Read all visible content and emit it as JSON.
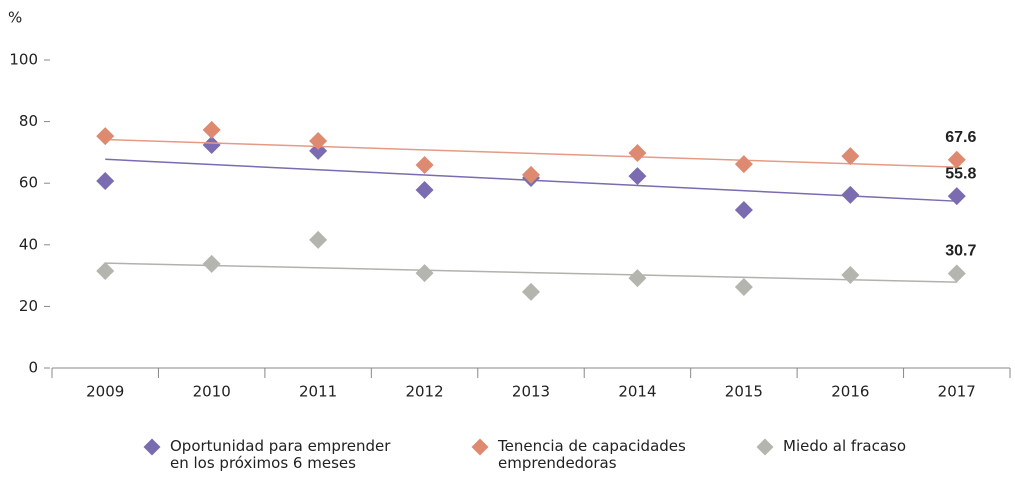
{
  "chart_data": {
    "type": "scatter",
    "y_unit": "%",
    "categories": [
      "2009",
      "2010",
      "2011",
      "2012",
      "2013",
      "2014",
      "2015",
      "2016",
      "2017"
    ],
    "series": [
      {
        "name": "Oportunidad para emprender en los próximos 6 meses",
        "color": "#7b6bb0",
        "trend_color": "#7b6bb0",
        "values": [
          60.7,
          72.4,
          70.5,
          57.8,
          61.7,
          62.3,
          51.3,
          56.2,
          55.8
        ]
      },
      {
        "name": "Tenencia de capacidades emprendedoras",
        "color": "#de8a70",
        "trend_color": "#e59a84",
        "values": [
          75.3,
          77.3,
          73.7,
          65.9,
          62.7,
          69.8,
          66.2,
          68.8,
          67.6
        ]
      },
      {
        "name": "Miedo al fracaso",
        "color": "#b3b5ae",
        "trend_color": "#b0b2ab",
        "values": [
          31.5,
          33.8,
          41.6,
          30.8,
          24.7,
          29.2,
          26.3,
          30.2,
          30.7
        ]
      }
    ],
    "trendline": "linear",
    "data_labels": "last",
    "ylim": [
      0,
      100
    ],
    "yticks": [
      0,
      20,
      40,
      60,
      80,
      100
    ],
    "grid": false
  }
}
